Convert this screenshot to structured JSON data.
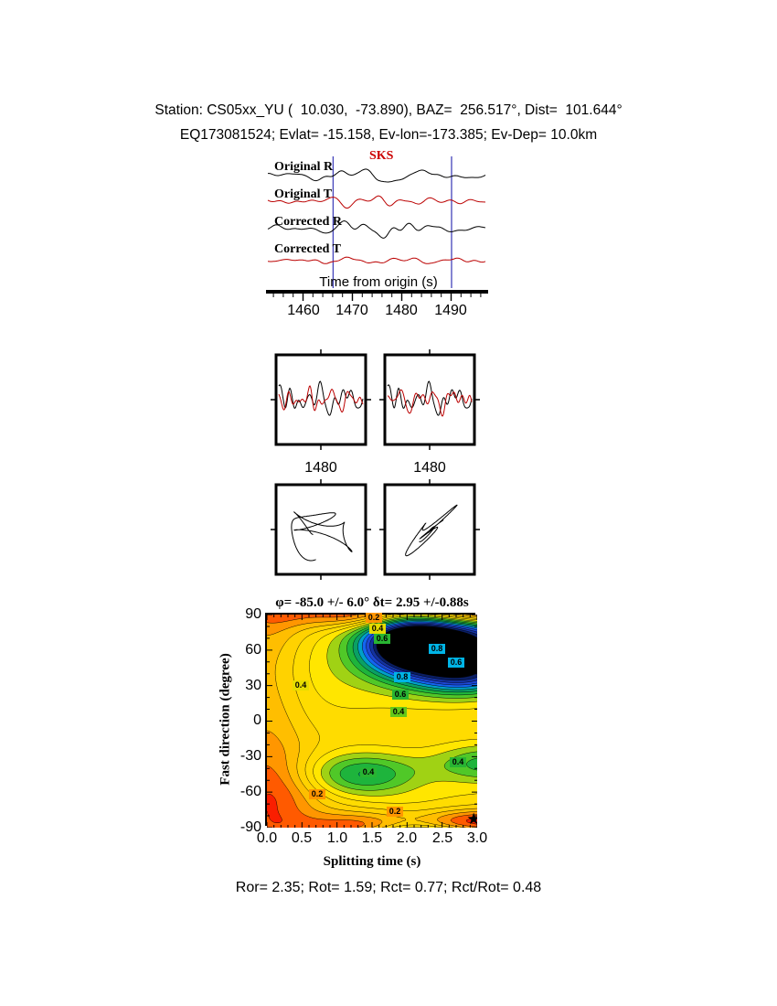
{
  "header": {
    "line1": "Station: CS05xx_YU (  10.030,  -73.890), BAZ=  256.517°, Dist=  101.644°",
    "line2": "EQ173081524; Evlat= -15.158, Ev-lon=-173.385; Ev-Dep= 10.0km"
  },
  "waveform_panel": {
    "phase_label": "SKS",
    "phase_color": "#CC0000",
    "window_color": "#4444BB",
    "window_times": [
      1466.0,
      1490.5
    ],
    "traces": [
      {
        "label": "Original R",
        "color": "#000000",
        "seed": 7,
        "amp": 13,
        "env": [
          0.35,
          0.75,
          0.52,
          0.2
        ]
      },
      {
        "label": "Original T",
        "color": "#BB0000",
        "seed": 13,
        "amp": 8,
        "env": [
          0.5,
          0.5,
          0.45,
          0.25
        ]
      },
      {
        "label": "Corrected R",
        "color": "#000000",
        "seed": 23,
        "amp": 12,
        "env": [
          0.35,
          0.75,
          0.5,
          0.2
        ]
      },
      {
        "label": "Corrected T",
        "color": "#BB0000",
        "seed": 31,
        "amp": 4.5,
        "env": [
          0.7,
          0.2,
          0.5,
          0.3
        ]
      }
    ],
    "axis": {
      "label": "Time from origin (s)",
      "t_min": 1452.5,
      "t_max": 1497.5,
      "major_ticks": [
        1460,
        1470,
        1480,
        1490
      ],
      "tick_labels": [
        "1460",
        "1470",
        "1480",
        "1490"
      ],
      "minor_step": 2
    }
  },
  "mini_panels": [
    {
      "tick_label": "1480",
      "traces": [
        {
          "color": "#000000",
          "seed": 51,
          "amp": 20
        },
        {
          "color": "#BB0000",
          "seed": 57,
          "amp": 15
        }
      ]
    },
    {
      "tick_label": "1480",
      "traces": [
        {
          "color": "#000000",
          "seed": 51,
          "amp": 20
        },
        {
          "color": "#BB0000",
          "seed": 52,
          "amp": 18
        }
      ]
    }
  ],
  "hodograms": [
    {
      "seed": 101,
      "skew": 0.0
    },
    {
      "seed": 205,
      "skew": 0.55
    }
  ],
  "chart_data": [
    {
      "type": "line",
      "title": "SKS phase waveforms",
      "series": [
        {
          "name": "Original R",
          "color": "#000000"
        },
        {
          "name": "Original T",
          "color": "#BB0000"
        },
        {
          "name": "Corrected R",
          "color": "#000000"
        },
        {
          "name": "Corrected T",
          "color": "#BB0000"
        }
      ],
      "xlabel": "Time from origin (s)",
      "xticks": [
        1460,
        1470,
        1480,
        1490
      ],
      "xlim": [
        1452.5,
        1497.5
      ],
      "phase_pick": "SKS",
      "window_s": [
        1466.0,
        1490.5
      ],
      "mini_panel_tick_s": 1480
    },
    {
      "type": "heatmap",
      "title": "φ= -85.0 +/- 6.0° δt= 2.95 +/-0.88s",
      "xlabel": "Splitting time (s)",
      "ylabel": "Fast direction (degree)",
      "xlim": [
        0.0,
        3.0
      ],
      "ylim": [
        -90,
        90
      ],
      "xticks": [
        0.0,
        0.5,
        1.0,
        1.5,
        2.0,
        2.5,
        3.0
      ],
      "xtick_labels": [
        "0.0",
        "0.5",
        "1.0",
        "1.5",
        "2.0",
        "2.5",
        "3.0"
      ],
      "yticks": [
        90,
        60,
        30,
        0,
        -30,
        -60,
        -90
      ],
      "ytick_labels": [
        "90",
        "60",
        "30",
        "0",
        "-30",
        "-60",
        "-90"
      ],
      "x_minor": 0.1,
      "y_minor": 10,
      "grid": false,
      "best_solution": {
        "fast_direction_deg": -85.0,
        "fast_direction_err_deg": 6.0,
        "delay_time_s": 2.95,
        "delay_time_err_s": 0.88,
        "marker": "star"
      },
      "contour_levels_step": 0.05,
      "contour_labels": [
        {
          "t": 1.52,
          "d": 87,
          "text": "0.2",
          "color": "#FF9600"
        },
        {
          "t": 1.58,
          "d": 78,
          "text": "0.4",
          "color": "#E6DC00"
        },
        {
          "t": 1.64,
          "d": 69,
          "text": "0.6",
          "color": "#28B432"
        },
        {
          "t": 2.42,
          "d": 61,
          "text": "0.8",
          "color": "#00B4E6"
        },
        {
          "t": 2.7,
          "d": 49,
          "text": "0.6",
          "color": "#00B4E6"
        },
        {
          "t": 1.93,
          "d": 37,
          "text": "0.8",
          "color": "#00B4E6"
        },
        {
          "t": 1.9,
          "d": 22,
          "text": "0.6",
          "color": "#28B432"
        },
        {
          "t": 1.88,
          "d": 7,
          "text": "0.4",
          "color": "#64C819"
        },
        {
          "t": 0.48,
          "d": 30,
          "text": "0.4",
          "color": "#E6DC00"
        },
        {
          "t": 2.72,
          "d": -35,
          "text": "0.4",
          "color": "#28B432"
        },
        {
          "t": 1.45,
          "d": -44,
          "text": "0.4",
          "color": "#28B432"
        },
        {
          "t": 0.72,
          "d": -62,
          "text": "0.2",
          "color": "#FF9600"
        },
        {
          "t": 1.82,
          "d": -77,
          "text": "0.2",
          "color": "#FF9600"
        }
      ],
      "colormap_bins": [
        [
          0.05,
          "#C80000"
        ],
        [
          0.1,
          "#FA1E00"
        ],
        [
          0.15,
          "#FF5A00"
        ],
        [
          0.2,
          "#FF9600"
        ],
        [
          0.25,
          "#FFBE00"
        ],
        [
          0.3,
          "#FFD200"
        ],
        [
          0.35,
          "#FFDC00"
        ],
        [
          0.4,
          "#FFE600"
        ],
        [
          0.45,
          "#A0D214"
        ],
        [
          0.5,
          "#50C828"
        ],
        [
          0.55,
          "#1EB43C"
        ],
        [
          0.6,
          "#0AA064"
        ],
        [
          0.65,
          "#00A0C8"
        ],
        [
          0.7,
          "#1464F0"
        ],
        [
          0.75,
          "#1E46D2"
        ],
        [
          0.8,
          "#1432A0"
        ],
        [
          0.85,
          "#0A1E64"
        ],
        [
          9.0,
          "#000000"
        ]
      ],
      "field_model": {
        "base": 0.3,
        "gaussians": [
          [
            2.0,
            66,
            0.45,
            17,
            0.55
          ],
          [
            2.7,
            64,
            0.7,
            23,
            0.6
          ],
          [
            2.85,
            38,
            0.5,
            11,
            0.22
          ],
          [
            2.75,
            -88,
            1.15,
            10,
            -0.26
          ],
          [
            2.95,
            -86,
            0.5,
            8,
            -0.2
          ],
          [
            1.45,
            90,
            0.7,
            8,
            -0.16
          ],
          [
            1.35,
            -45,
            0.6,
            13,
            0.26
          ],
          [
            3.15,
            -36,
            0.55,
            12,
            0.22
          ],
          [
            0.2,
            -63,
            0.55,
            26,
            -0.12
          ],
          [
            0.0,
            0,
            0.38,
            900,
            -0.1
          ],
          [
            0.95,
            45,
            0.8,
            34,
            0.08
          ]
        ]
      }
    }
  ],
  "footer": {
    "stats": "Ror= 2.35; Rot= 1.59; Rct= 0.77; Rct/Rot= 0.48",
    "values": {
      "Ror": 2.35,
      "Rot": 1.59,
      "Rct": 0.77,
      "Rct_over_Rot": 0.48
    }
  }
}
